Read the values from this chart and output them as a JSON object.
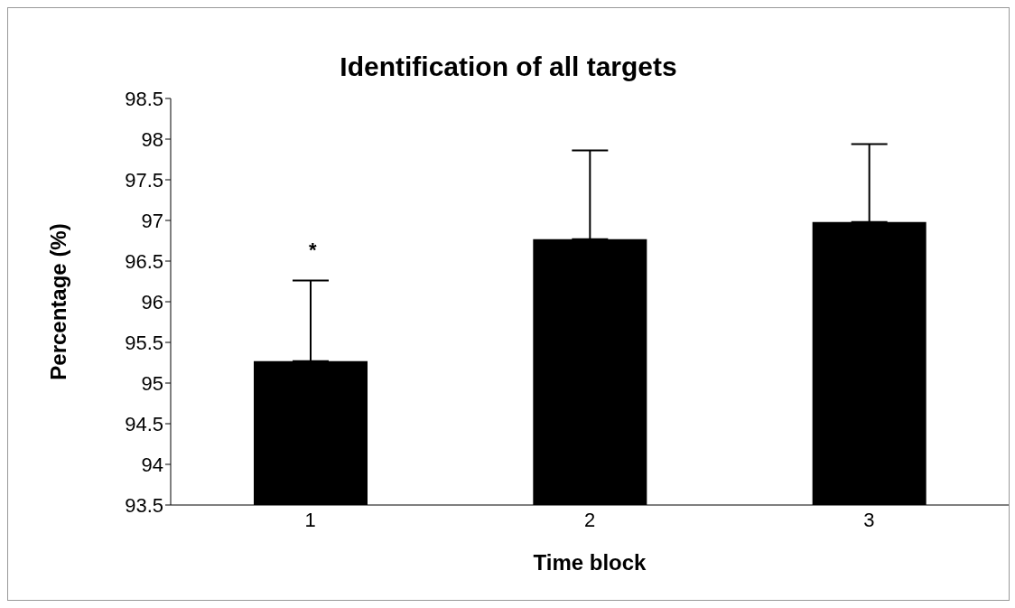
{
  "chart_data": {
    "type": "bar",
    "title": "Identification of all targets",
    "xlabel": "Time block",
    "ylabel": "Percentage (%)",
    "categories": [
      "1",
      "2",
      "3"
    ],
    "values": [
      95.27,
      96.77,
      96.98
    ],
    "errors": [
      [
        95.27,
        96.26
      ],
      [
        96.77,
        97.86
      ],
      [
        96.98,
        97.94
      ]
    ],
    "color": "#000000",
    "ylim": [
      93.5,
      98.5
    ],
    "yticks": [
      93.5,
      94,
      94.5,
      95,
      95.5,
      96,
      96.5,
      97,
      97.5,
      98,
      98.5
    ],
    "annotations": [
      "*"
    ],
    "grid": false,
    "legend": false
  }
}
